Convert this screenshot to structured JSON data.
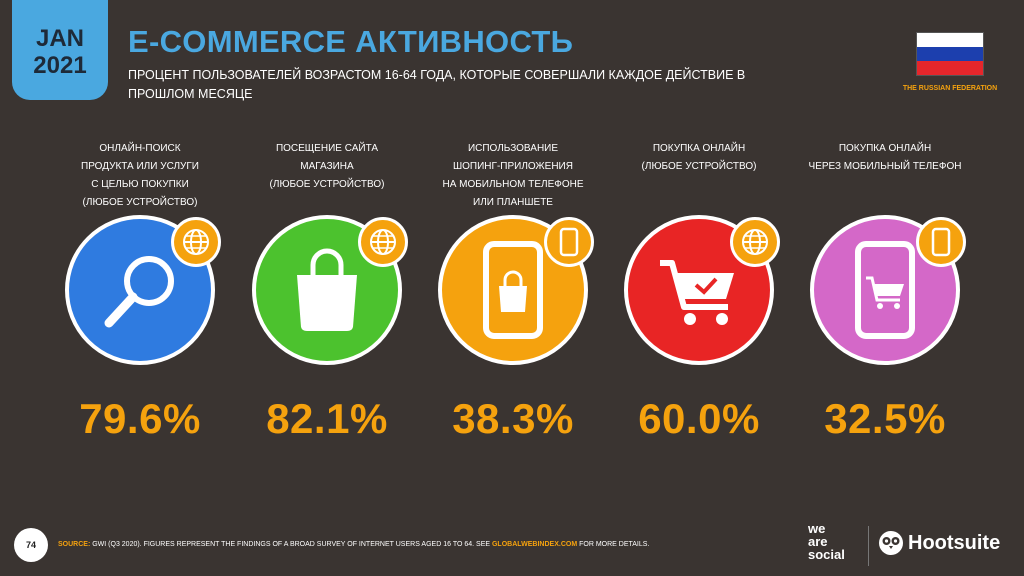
{
  "header": {
    "month": "JAN",
    "year": "2021",
    "title": "E-COMMERCE АКТИВНОСТЬ",
    "subtitle": "ПРОЦЕНТ ПОЛЬЗОВАТЕЛЕЙ ВОЗРАСТОМ 16-64 ГОДА, КОТОРЫЕ СОВЕРШАЛИ КАЖДОЕ ДЕЙСТВИЕ В ПРОШЛОМ МЕСЯЦЕ"
  },
  "country": {
    "name": "THE RUSSIAN FEDERATION",
    "flag_colors": [
      "#ffffff",
      "#1c3fae",
      "#e5262b"
    ]
  },
  "metrics": [
    {
      "label_lines": [
        "ОНЛАЙН-ПОИСК",
        "ПРОДУКТА ИЛИ УСЛУГИ",
        "С ЦЕЛЬЮ ПОКУПКИ",
        "(ЛЮБОЕ УСТРОЙСТВО)"
      ],
      "value": "79.6%",
      "color": "#2f7be0",
      "icon": "magnifier-icon",
      "badge_icon": "globe-icon"
    },
    {
      "label_lines": [
        "ПОСЕЩЕНИЕ САЙТА",
        "МАГАЗИНА",
        "(ЛЮБОЕ УСТРОЙСТВО)"
      ],
      "value": "82.1%",
      "color": "#4cc22e",
      "icon": "shopping-bag-icon",
      "badge_icon": "globe-icon"
    },
    {
      "label_lines": [
        "ИСПОЛЬЗОВАНИЕ",
        "ШОПИНГ-ПРИЛОЖЕНИЯ",
        "НА МОБИЛЬНОМ ТЕЛЕФОНЕ",
        "ИЛИ ПЛАНШЕТЕ"
      ],
      "value": "38.3%",
      "color": "#f5a20e",
      "icon": "phone-bag-icon",
      "badge_icon": "phone-icon"
    },
    {
      "label_lines": [
        "ПОКУПКА ОНЛАЙН",
        "(ЛЮБОЕ УСТРОЙСТВО)"
      ],
      "value": "60.0%",
      "color": "#e82525",
      "icon": "cart-icon",
      "badge_icon": "globe-icon"
    },
    {
      "label_lines": [
        "ПОКУПКА ОНЛАЙН",
        "ЧЕРЕЗ МОБИЛЬНЫЙ ТЕЛЕФОН"
      ],
      "value": "32.5%",
      "color": "#d468c8",
      "icon": "phone-cart-icon",
      "badge_icon": "phone-icon"
    }
  ],
  "footer": {
    "page_number": "74",
    "source_label": "SOURCE:",
    "source_text": " GWI (Q3 2020). FIGURES REPRESENT THE FINDINGS OF A BROAD SURVEY OF INTERNET USERS AGED 16 TO 64. SEE ",
    "source_link": "GLOBALWEBINDEX.COM",
    "source_tail": " FOR MORE DETAILS.",
    "brand1": "we\nare\nsocial",
    "brand2": "Hootsuite"
  }
}
